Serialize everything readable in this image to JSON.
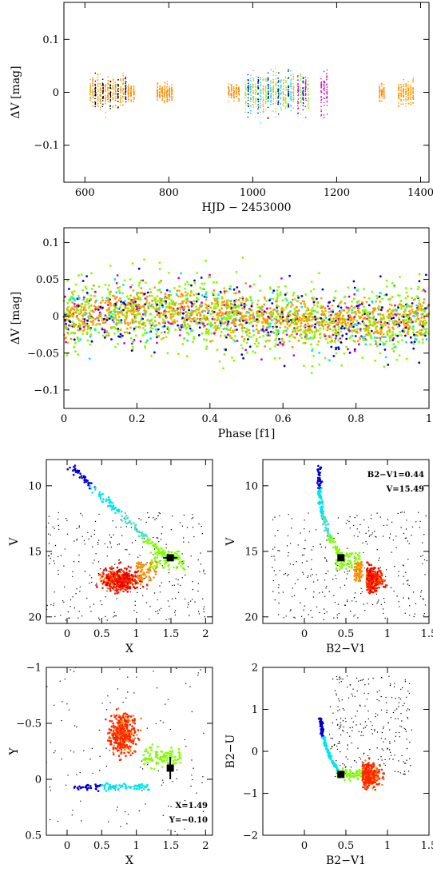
{
  "chart_data": [
    {
      "id": "lightcurve",
      "type": "scatter",
      "xlabel": "HJD − 2453000",
      "ylabel": "ΔV [mag]",
      "xlim": [
        550,
        1420
      ],
      "ylim": [
        0.17,
        -0.17
      ],
      "xticks": [
        600,
        800,
        1000,
        1200,
        1400
      ],
      "yticks": [
        -0.1,
        0,
        0.1
      ],
      "yticklabels": [
        "−0.1",
        "0",
        "0.1"
      ],
      "series_colors": [
        "#ff8c00",
        "#ffa500",
        "#7fff00",
        "#00e5ee",
        "#0000cd",
        "#cd00cd",
        "#000000"
      ],
      "observing_runs": [
        {
          "x": [
            610,
            700
          ],
          "colors": [
            "#ffa500",
            "#ff8c00",
            "#000000"
          ],
          "scatter": 0.06
        },
        {
          "x": [
            700,
            720
          ],
          "colors": [
            "#ff8c00"
          ],
          "scatter": 0.03
        },
        {
          "x": [
            770,
            810
          ],
          "colors": [
            "#ff8c00"
          ],
          "scatter": 0.03
        },
        {
          "x": [
            940,
            970
          ],
          "colors": [
            "#ff8c00"
          ],
          "scatter": 0.03
        },
        {
          "x": [
            980,
            1100
          ],
          "colors": [
            "#7fff00",
            "#0000cd",
            "#00e5ee",
            "#ffa500"
          ],
          "scatter": 0.07
        },
        {
          "x": [
            1105,
            1135
          ],
          "colors": [
            "#cd00cd",
            "#7fff00",
            "#0000cd"
          ],
          "scatter": 0.07
        },
        {
          "x": [
            1160,
            1180
          ],
          "colors": [
            "#cd00cd"
          ],
          "scatter": 0.08
        },
        {
          "x": [
            1300,
            1315
          ],
          "colors": [
            "#ff8c00"
          ],
          "scatter": 0.03
        },
        {
          "x": [
            1345,
            1385
          ],
          "colors": [
            "#ff8c00",
            "#ffa500"
          ],
          "scatter": 0.04
        }
      ]
    },
    {
      "id": "phased",
      "type": "scatter",
      "xlabel": "Phase [f1]",
      "ylabel": "ΔV [mag]",
      "xlim": [
        0,
        1
      ],
      "ylim": [
        0.12,
        -0.125
      ],
      "xticks": [
        0,
        0.2,
        0.4,
        0.6,
        0.8,
        1
      ],
      "xticklabels": [
        "0",
        "0.2",
        "0.4",
        "0.6",
        "0.8",
        "1"
      ],
      "yticks": [
        -0.1,
        -0.05,
        0,
        0.05,
        0.1
      ],
      "yticklabels": [
        "−0.1",
        "−0.05",
        "0",
        "0.05",
        "0.1"
      ],
      "point_colors": [
        "#7fff00",
        "#ff8c00",
        "#ffa500",
        "#0000cd",
        "#00e5ee",
        "#cd00cd"
      ]
    },
    {
      "id": "cmd-v-x",
      "type": "scatter",
      "xlabel": "X",
      "ylabel": "V",
      "xlim": [
        -0.3,
        2.1
      ],
      "ylim": [
        8,
        20.5
      ],
      "xticks": [
        0,
        0.5,
        1,
        1.5,
        2
      ],
      "xticklabels": [
        "0",
        "0.5",
        "1",
        "1.5",
        "2"
      ],
      "yticks": [
        10,
        15,
        20
      ],
      "yticklabels": [
        "10",
        "15",
        "20"
      ],
      "marker": {
        "x": 1.49,
        "y": 15.49
      }
    },
    {
      "id": "cmd-v-bv",
      "type": "scatter",
      "xlabel": "B2−V1",
      "ylabel": "V",
      "xlim": [
        -0.5,
        1.5
      ],
      "ylim": [
        8,
        20.5
      ],
      "xticks": [
        0,
        0.5,
        1,
        1.5
      ],
      "xticklabels": [
        "0",
        "0.5",
        "1",
        "1.5"
      ],
      "yticks": [
        10,
        15,
        20
      ],
      "yticklabels": [
        "10",
        "15",
        "20"
      ],
      "marker": {
        "x": 0.44,
        "y": 15.49
      },
      "annotations": [
        "B2−V1=0.44",
        "V=15.49"
      ]
    },
    {
      "id": "ccd-y-x",
      "type": "scatter",
      "xlabel": "X",
      "ylabel": "Y",
      "xlim": [
        -0.3,
        2.1
      ],
      "ylim": [
        -1,
        0.5
      ],
      "xticks": [
        0,
        0.5,
        1,
        1.5,
        2
      ],
      "xticklabels": [
        "0",
        "0.5",
        "1",
        "1.5",
        "2"
      ],
      "yticks": [
        -1,
        -0.5,
        0,
        0.5
      ],
      "yticklabels": [
        "−1",
        "−0.5",
        "0",
        "0.5"
      ],
      "marker": {
        "x": 1.49,
        "y": -0.1
      },
      "annotations": [
        "X=1.49",
        "Y=−0.10"
      ]
    },
    {
      "id": "ccd-bu-bv",
      "type": "scatter",
      "xlabel": "B2−V1",
      "ylabel": "B2−U",
      "xlim": [
        -0.5,
        1.5
      ],
      "ylim": [
        2,
        -2
      ],
      "xticks": [
        0,
        0.5,
        1,
        1.5
      ],
      "xticklabels": [
        "0",
        "0.5",
        "1",
        "1.5"
      ],
      "yticks": [
        -2,
        -1,
        0,
        1,
        2
      ],
      "yticklabels": [
        "−2",
        "−1",
        "0",
        "1",
        "2"
      ],
      "marker": {
        "x": 0.44,
        "y": -0.55
      }
    }
  ]
}
